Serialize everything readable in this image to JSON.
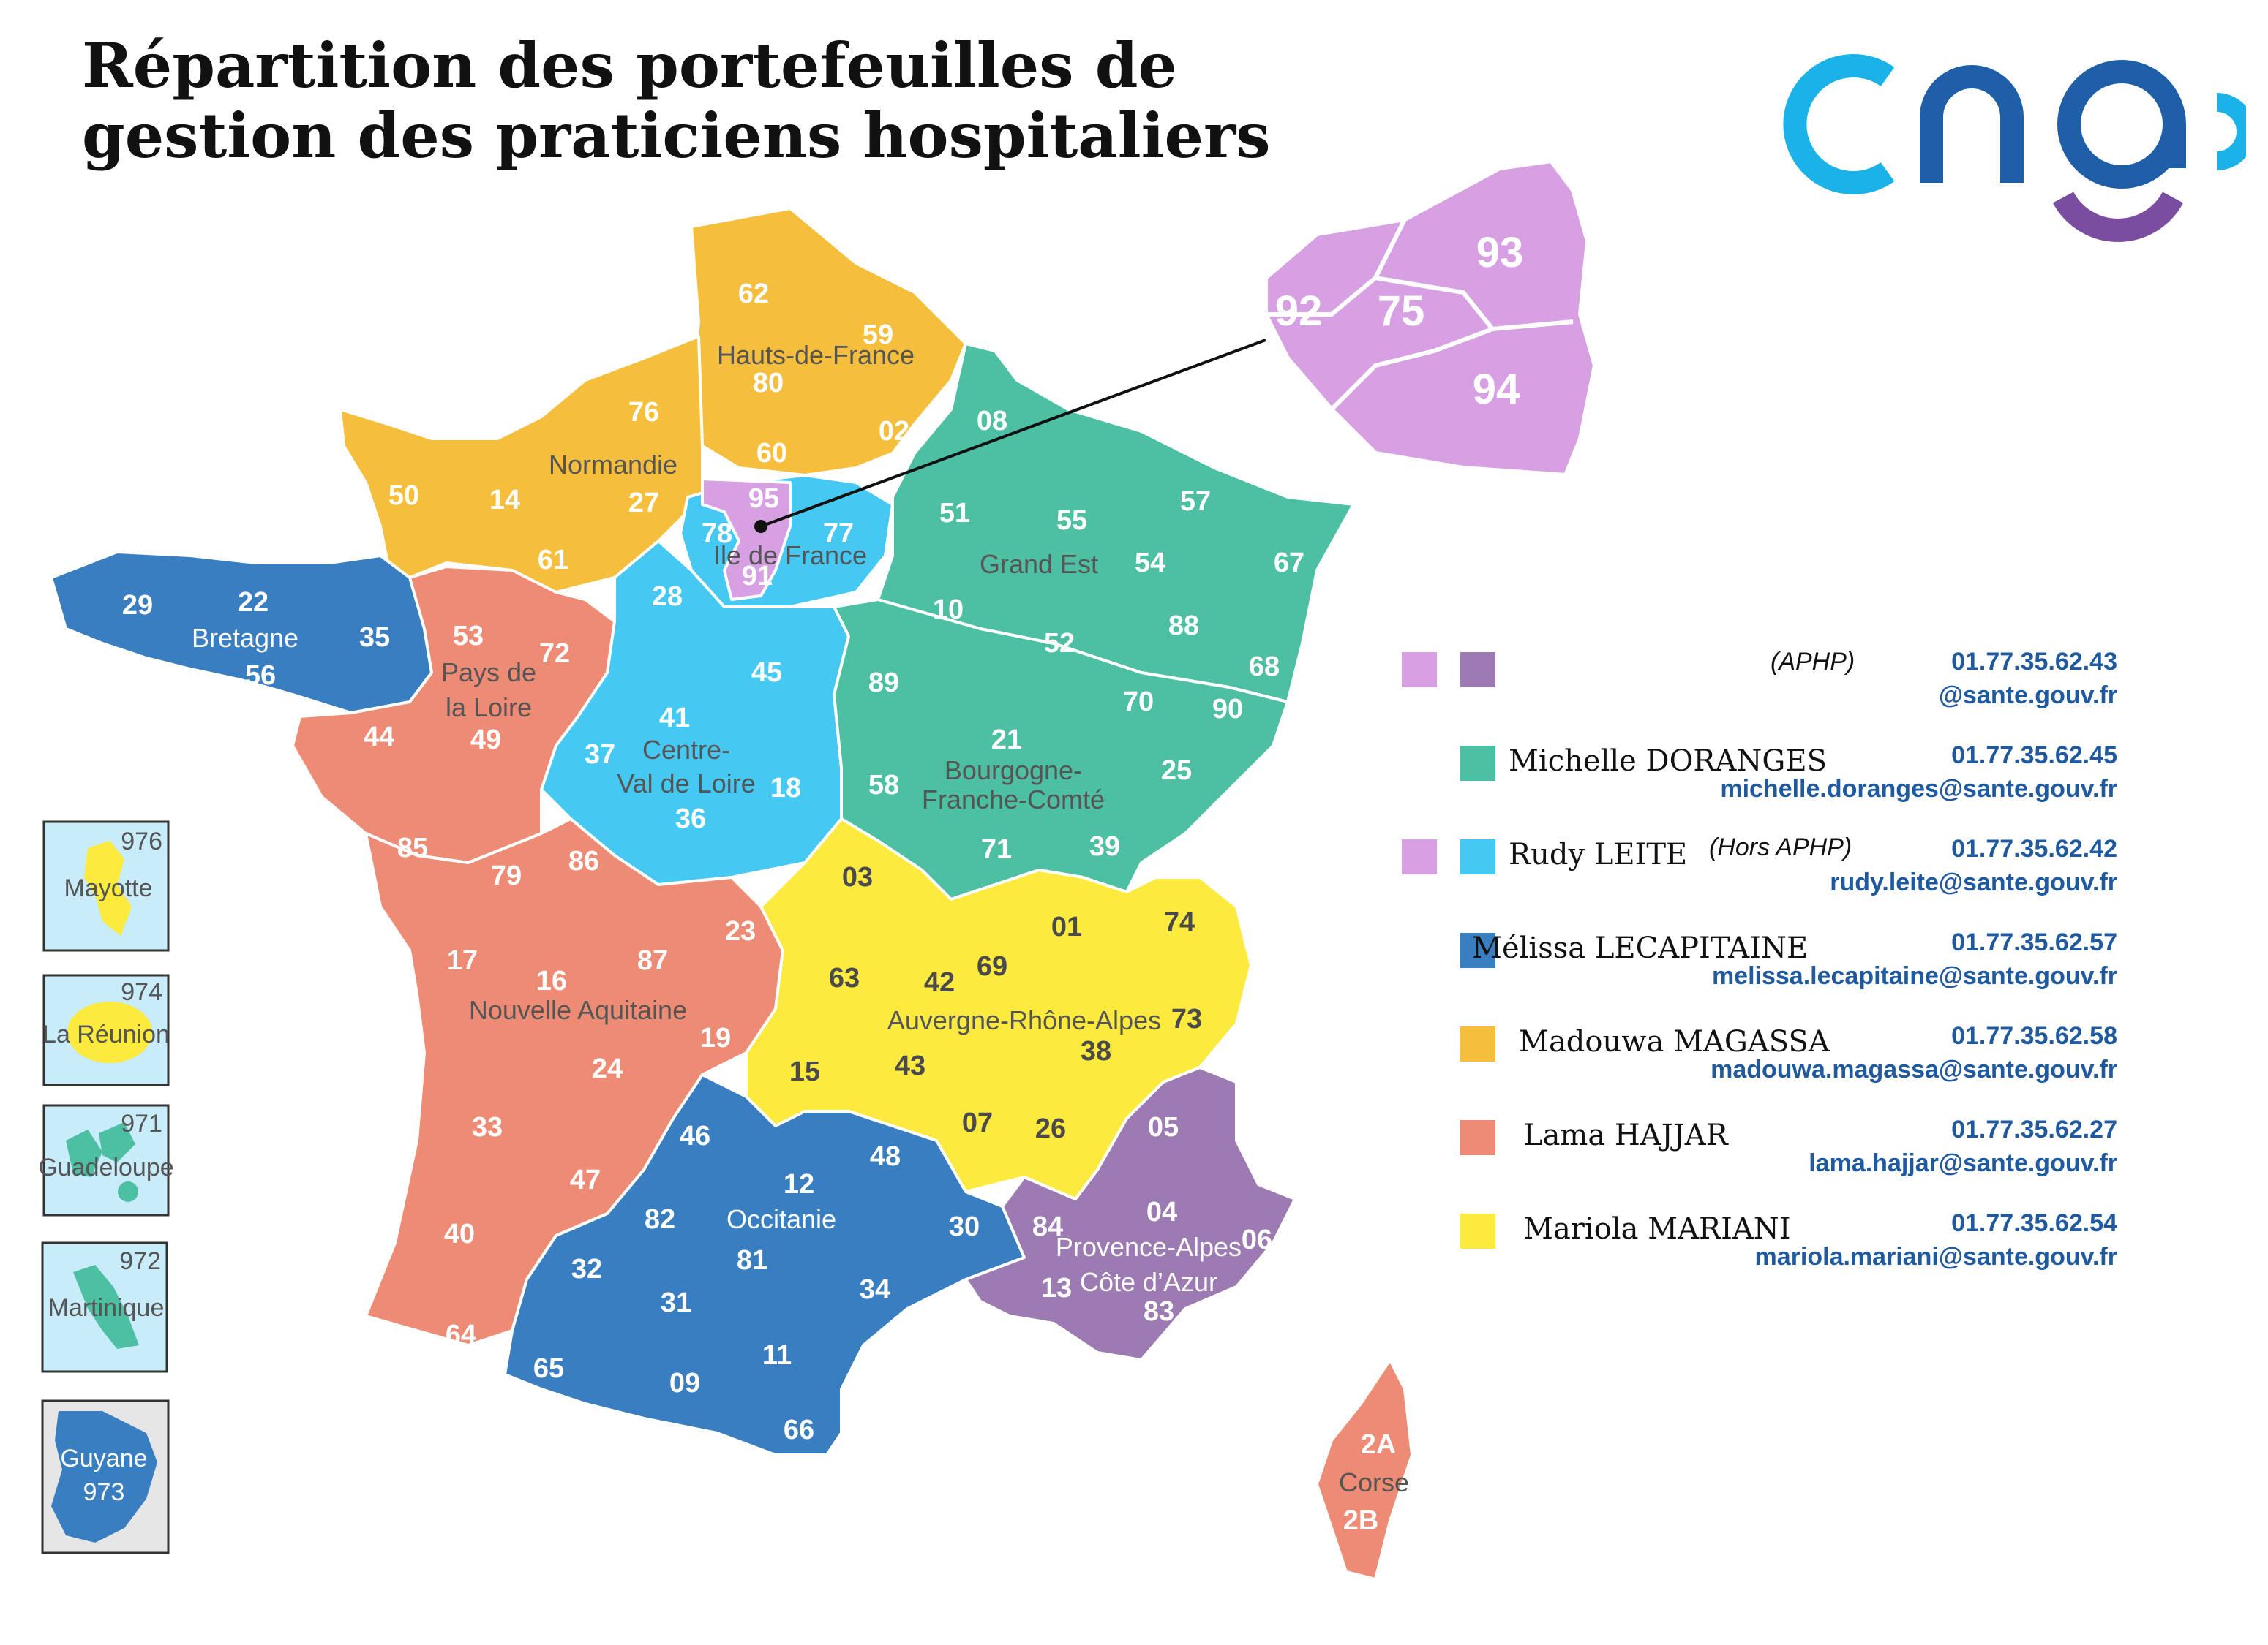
{
  "title": {
    "line1": "Répartition des portefeuilles de",
    "line2": "gestion des praticiens hospitaliers"
  },
  "logo": {
    "text": "cng",
    "icon": "cng-logo"
  },
  "colors": {
    "aphp_light": "#d6a0e3",
    "aphp_dark": "#9c7bb2",
    "green": "#4dbfa2",
    "cyan": "#45c8f2",
    "blue": "#3a7ec2",
    "orange": "#f5bf3d",
    "salmon": "#ee8b74",
    "yellow": "#fdea3e",
    "purple": "#9c7bb2"
  },
  "regions": {
    "hdf": "Hauts-de-France",
    "normandie": "Normandie",
    "idf": "Ile de France",
    "grandest": "Grand Est",
    "bretagne": "Bretagne",
    "pdl1": "Pays de",
    "pdl2": "la Loire",
    "cvl1": "Centre-",
    "cvl2": "Val de Loire",
    "bfc1": "Bourgogne-",
    "bfc2": "Franche-Comté",
    "na": "Nouvelle Aquitaine",
    "ara": "Auvergne-Rhône-Alpes",
    "occ": "Occitanie",
    "paca1": "Provence-Alpes",
    "paca2": "Côte d’Azur",
    "corse": "Corse"
  },
  "departments": {
    "d62": "62",
    "d59": "59",
    "d80": "80",
    "d02": "02",
    "d60": "60",
    "d76": "76",
    "d27": "27",
    "d14": "14",
    "d50": "50",
    "d61": "61",
    "d95": "95",
    "d78": "78",
    "d77": "77",
    "d91": "91",
    "d08": "08",
    "d51": "51",
    "d55": "55",
    "d57": "57",
    "d54": "54",
    "d67": "67",
    "d10": "10",
    "d52": "52",
    "d88": "88",
    "d68": "68",
    "d29": "29",
    "d22": "22",
    "d35": "35",
    "d56": "56",
    "d53": "53",
    "d72": "72",
    "d44": "44",
    "d49": "49",
    "d85": "85",
    "d28": "28",
    "d45": "45",
    "d41": "41",
    "d37": "37",
    "d36": "36",
    "d18": "18",
    "d89": "89",
    "d21": "21",
    "d70": "70",
    "d90": "90",
    "d25": "25",
    "d58": "58",
    "d71": "71",
    "d39": "39",
    "d79": "79",
    "d86": "86",
    "d17": "17",
    "d16": "16",
    "d87": "87",
    "d23": "23",
    "d19": "19",
    "d24": "24",
    "d33": "33",
    "d47": "47",
    "d40": "40",
    "d64": "64",
    "d03": "03",
    "d63": "63",
    "d42": "42",
    "d69": "69",
    "d01": "01",
    "d74": "74",
    "d73": "73",
    "d38": "38",
    "d15": "15",
    "d43": "43",
    "d07": "07",
    "d26": "26",
    "d46": "46",
    "d12": "12",
    "d48": "48",
    "d82": "82",
    "d30": "30",
    "d81": "81",
    "d32": "32",
    "d31": "31",
    "d34": "34",
    "d65": "65",
    "d09": "09",
    "d11": "11",
    "d66": "66",
    "d05": "05",
    "d04": "04",
    "d06": "06",
    "d84": "84",
    "d13": "13",
    "d83": "83",
    "d2A": "2A",
    "d2B": "2B"
  },
  "zoom": {
    "d93": "93",
    "d92": "92",
    "d75": "75",
    "d94": "94"
  },
  "insets": [
    {
      "num": "976",
      "name": "Mayotte"
    },
    {
      "num": "974",
      "name": "La Réunion"
    },
    {
      "num": "971",
      "name": "Guadeloupe"
    },
    {
      "num": "972",
      "name": "Martinique"
    },
    {
      "num": "973",
      "name": "Guyane"
    }
  ],
  "legend": [
    {
      "name": "",
      "note": "(APHP)",
      "phone": "01.77.35.62.43",
      "email": "@sante.gouv.fr",
      "swatches": [
        "#d6a0e3",
        "#9c7bb2"
      ]
    },
    {
      "name": "Michelle DORANGES",
      "note": "",
      "phone": "01.77.35.62.45",
      "email": "michelle.doranges@sante.gouv.fr",
      "swatches": [
        "#4dbfa2"
      ]
    },
    {
      "name": "Rudy LEITE",
      "note": "(Hors APHP)",
      "phone": "01.77.35.62.42",
      "email": "rudy.leite@sante.gouv.fr",
      "swatches": [
        "#d6a0e3",
        "#45c8f2"
      ]
    },
    {
      "name": "Mélissa LECAPITAINE",
      "note": "",
      "phone": "01.77.35.62.57",
      "email": "melissa.lecapitaine@sante.gouv.fr",
      "swatches": [
        "#3a7ec2"
      ]
    },
    {
      "name": "Madouwa MAGASSA",
      "note": "",
      "phone": "01.77.35.62.58",
      "email": "madouwa.magassa@sante.gouv.fr",
      "swatches": [
        "#f5bf3d"
      ]
    },
    {
      "name": "Lama HAJJAR",
      "note": "",
      "phone": "01.77.35.62.27",
      "email": "lama.hajjar@sante.gouv.fr",
      "swatches": [
        "#ee8b74"
      ]
    },
    {
      "name": "Mariola MARIANI",
      "note": "",
      "phone": "01.77.35.62.54",
      "email": "mariola.mariani@sante.gouv.fr",
      "swatches": [
        "#fdea3e"
      ]
    }
  ]
}
